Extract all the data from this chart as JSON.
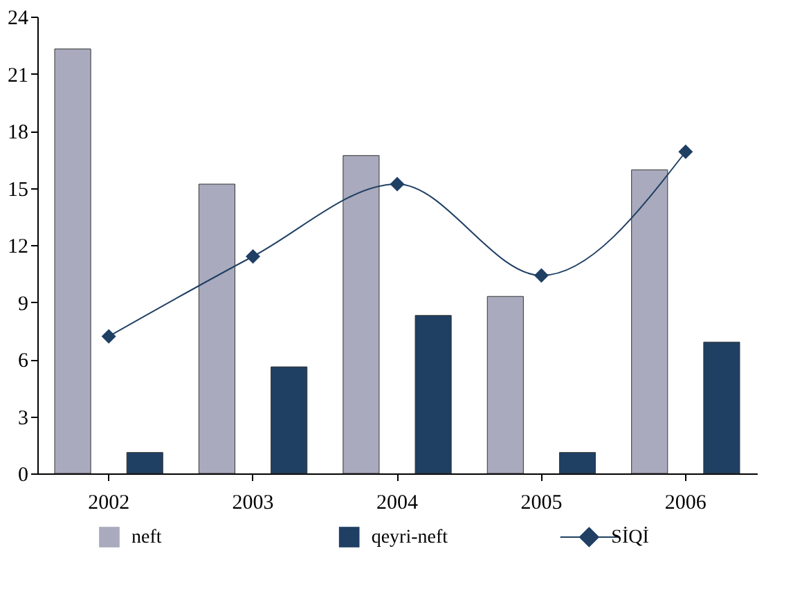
{
  "chart_data": {
    "type": "bar",
    "categories": [
      "2002",
      "2003",
      "2004",
      "2005",
      "2006"
    ],
    "series": [
      {
        "name": "neft",
        "color": "#a9aabd",
        "values": [
          22.3,
          15.2,
          16.7,
          9.3,
          15.95
        ]
      },
      {
        "name": "qeyri-neft",
        "color": "#1f3f63",
        "values": [
          1.1,
          5.6,
          8.3,
          1.1,
          6.9
        ]
      },
      {
        "name": "SİQİ",
        "type": "line",
        "color": "#1f3f63",
        "marker": "diamond",
        "values": [
          7.2,
          11.4,
          15.2,
          10.4,
          16.9
        ]
      }
    ],
    "ylim": [
      0,
      24
    ],
    "yticks": [
      0,
      3,
      6,
      9,
      12,
      15,
      18,
      21,
      24
    ],
    "grid": false,
    "legend": "bottom"
  }
}
